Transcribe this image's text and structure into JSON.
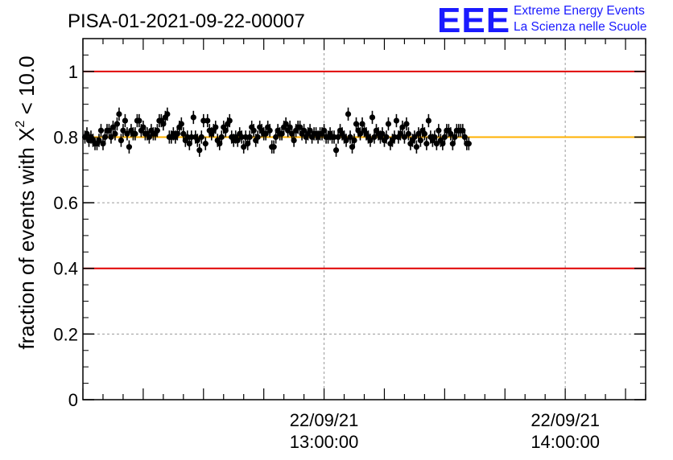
{
  "chart_data": {
    "type": "scatter",
    "title": "PISA-01-2021-09-22-00007",
    "ylabel": {
      "prefix": "fraction of events with ",
      "symbol": "X",
      "superscript": "2",
      "suffix": " < 10.0"
    },
    "logo": {
      "mark": "EEE",
      "line1": "Extreme Energy Events",
      "line2": "La Scienza nelle Scuole"
    },
    "x_axis": {
      "unit": "minutes since 12:00:00",
      "range": [
        0,
        140
      ],
      "labeled_ticks": [
        {
          "value": 60,
          "date": "22/09/21",
          "time": "13:00:00"
        },
        {
          "value": 120,
          "date": "22/09/21",
          "time": "14:00:00"
        }
      ],
      "major_tick_step": 15,
      "minor_tick_step": 5
    },
    "y_axis": {
      "range": [
        0,
        1.1
      ],
      "ticks": [
        0,
        0.2,
        0.4,
        0.6,
        0.8,
        1
      ],
      "tick_labels": [
        "0",
        "0.2",
        "0.4",
        "0.6",
        "0.8",
        "1"
      ]
    },
    "grid": true,
    "reference_lines": [
      {
        "y": 1.0,
        "color": "#e00000"
      },
      {
        "y": 0.4,
        "color": "#e00000"
      },
      {
        "y": 0.8,
        "color": "#ffb000"
      }
    ],
    "series": [
      {
        "marker_color": "#000000",
        "error": 0.02,
        "x_start": 0.5,
        "x_step": 0.5,
        "y": [
          0.8,
          0.81,
          0.79,
          0.8,
          0.79,
          0.78,
          0.78,
          0.79,
          0.82,
          0.78,
          0.8,
          0.82,
          0.82,
          0.8,
          0.83,
          0.81,
          0.84,
          0.87,
          0.79,
          0.82,
          0.85,
          0.81,
          0.77,
          0.82,
          0.81,
          0.81,
          0.85,
          0.85,
          0.82,
          0.83,
          0.81,
          0.81,
          0.8,
          0.82,
          0.81,
          0.81,
          0.82,
          0.85,
          0.85,
          0.84,
          0.86,
          0.87,
          0.8,
          0.8,
          0.81,
          0.8,
          0.81,
          0.83,
          0.84,
          0.81,
          0.79,
          0.8,
          0.78,
          0.8,
          0.86,
          0.8,
          0.79,
          0.76,
          0.8,
          0.85,
          0.78,
          0.85,
          0.82,
          0.81,
          0.82,
          0.83,
          0.79,
          0.78,
          0.8,
          0.83,
          0.82,
          0.84,
          0.85,
          0.8,
          0.79,
          0.8,
          0.79,
          0.81,
          0.8,
          0.77,
          0.8,
          0.78,
          0.8,
          0.83,
          0.82,
          0.79,
          0.8,
          0.83,
          0.82,
          0.81,
          0.81,
          0.83,
          0.82,
          0.77,
          0.77,
          0.8,
          0.82,
          0.81,
          0.81,
          0.83,
          0.84,
          0.82,
          0.83,
          0.81,
          0.79,
          0.82,
          0.83,
          0.83,
          0.81,
          0.82,
          0.8,
          0.81,
          0.82,
          0.8,
          0.81,
          0.81,
          0.8,
          0.81,
          0.81,
          0.82,
          0.8,
          0.8,
          0.81,
          0.8,
          0.8,
          0.76,
          0.8,
          0.82,
          0.81,
          0.8,
          0.79,
          0.87,
          0.8,
          0.77,
          0.79,
          0.84,
          0.82,
          0.81,
          0.84,
          0.82,
          0.81,
          0.8,
          0.79,
          0.86,
          0.8,
          0.82,
          0.81,
          0.8,
          0.81,
          0.79,
          0.8,
          0.84,
          0.78,
          0.79,
          0.8,
          0.85,
          0.8,
          0.81,
          0.83,
          0.8,
          0.84,
          0.81,
          0.78,
          0.79,
          0.8,
          0.77,
          0.81,
          0.79,
          0.82,
          0.81,
          0.78,
          0.85,
          0.8,
          0.79,
          0.8,
          0.78,
          0.82,
          0.79,
          0.78,
          0.8,
          0.82,
          0.82,
          0.81,
          0.78,
          0.8,
          0.82,
          0.82,
          0.82,
          0.82,
          0.8,
          0.78,
          0.78
        ]
      }
    ]
  }
}
